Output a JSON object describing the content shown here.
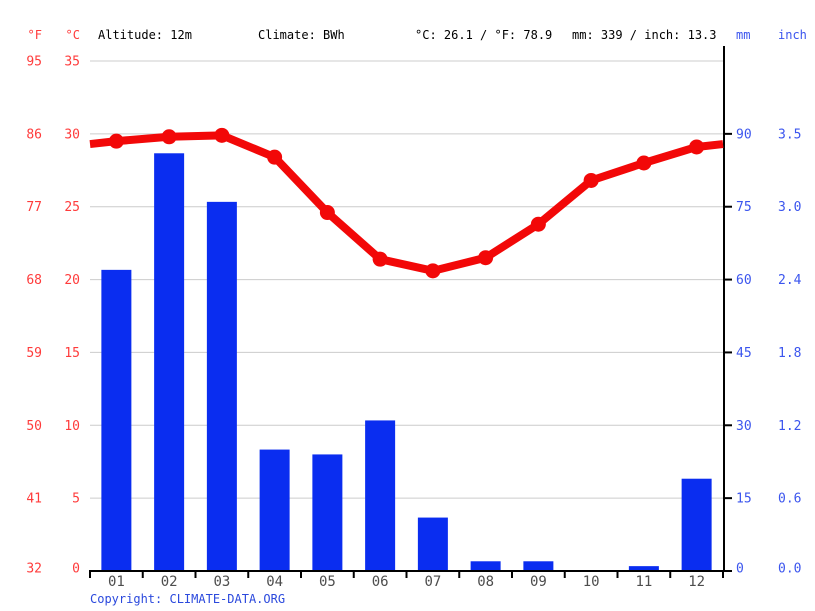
{
  "header": {
    "fahrenheit_label": "°F",
    "celsius_label": "°C",
    "altitude": "Altitude: 12m",
    "climate": "Climate: BWh",
    "temp_summary": "°C: 26.1 / °F: 78.9",
    "precip_summary": "mm: 339 / inch: 13.3",
    "mm_label": "mm",
    "inch_label": "inch"
  },
  "copyright": {
    "prefix": "Copyright: ",
    "site": "CLIMATE-DATA.ORG"
  },
  "colors": {
    "bar": "#0a2df0",
    "line": "#f20808",
    "temp_axis_labels": "#ff3b3b",
    "precip_axis_labels": "#3b55ee",
    "grid": "#cccccc",
    "axis": "#000000",
    "month_labels": "#4d4d4d",
    "copyright": "#2b49dd"
  },
  "chart_data": {
    "type": "bar+line",
    "title": "",
    "categories": [
      "01",
      "02",
      "03",
      "04",
      "05",
      "06",
      "07",
      "08",
      "09",
      "10",
      "11",
      "12"
    ],
    "series": [
      {
        "name": "precipitation_mm",
        "type": "bar",
        "values": [
          62,
          86,
          76,
          25,
          24,
          31,
          11,
          2,
          2,
          0,
          1,
          19
        ]
      },
      {
        "name": "temperature_c",
        "type": "line",
        "values": [
          29.5,
          29.8,
          29.9,
          28.4,
          24.6,
          21.4,
          20.6,
          21.5,
          23.8,
          26.8,
          28.0,
          29.1
        ]
      }
    ],
    "annual_mean_temp_c": 26.1,
    "annual_mean_temp_f": 78.9,
    "annual_precip_mm": 339,
    "annual_precip_inch": 13.3,
    "left_axis": {
      "f_ticks": [
        95,
        86,
        77,
        68,
        59,
        50,
        41,
        32
      ],
      "c_ticks": [
        35,
        30,
        25,
        20,
        15,
        10,
        5,
        0
      ]
    },
    "right_axis": {
      "mm_ticks": [
        90,
        75,
        60,
        45,
        30,
        15,
        0
      ],
      "inch_ticks": [
        "3.5",
        "3.0",
        "2.4",
        "1.8",
        "1.2",
        "0.6",
        "0.0"
      ]
    },
    "temp_axis_range_c": [
      0,
      35
    ],
    "precip_axis_range_mm": [
      0,
      105
    ],
    "grid": true,
    "legend": "none",
    "line_extends_to_plot_edges": true
  }
}
